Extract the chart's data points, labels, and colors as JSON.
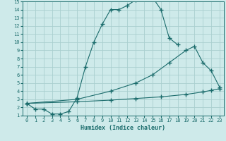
{
  "xlabel": "Humidex (Indice chaleur)",
  "xlim": [
    -0.5,
    23.5
  ],
  "ylim": [
    1,
    15
  ],
  "xticks": [
    0,
    1,
    2,
    3,
    4,
    5,
    6,
    7,
    8,
    9,
    10,
    11,
    12,
    13,
    14,
    15,
    16,
    17,
    18,
    19,
    20,
    21,
    22,
    23
  ],
  "yticks": [
    1,
    2,
    3,
    4,
    5,
    6,
    7,
    8,
    9,
    10,
    11,
    12,
    13,
    14,
    15
  ],
  "bg_color": "#ceeaea",
  "grid_color": "#aacfcf",
  "line_color": "#1a6b6b",
  "line1_x": [
    0,
    1,
    2,
    3,
    4,
    5,
    6,
    7,
    8,
    9,
    10,
    11,
    12,
    13,
    14,
    15,
    16,
    17,
    18
  ],
  "line1_y": [
    2.5,
    1.8,
    1.8,
    1.2,
    1.2,
    1.5,
    3.2,
    7.0,
    10.0,
    12.2,
    14.0,
    14.0,
    14.5,
    15.2,
    15.5,
    15.5,
    14.0,
    10.5,
    9.7
  ],
  "line2_x": [
    0,
    6,
    10,
    13,
    15,
    17,
    19,
    20,
    21,
    22,
    23
  ],
  "line2_y": [
    2.5,
    3.0,
    4.0,
    5.0,
    6.0,
    7.5,
    9.0,
    9.5,
    7.5,
    6.5,
    4.5
  ],
  "line3_x": [
    0,
    6,
    10,
    13,
    16,
    19,
    21,
    22,
    23
  ],
  "line3_y": [
    2.5,
    2.7,
    2.9,
    3.1,
    3.3,
    3.6,
    3.9,
    4.1,
    4.3
  ]
}
